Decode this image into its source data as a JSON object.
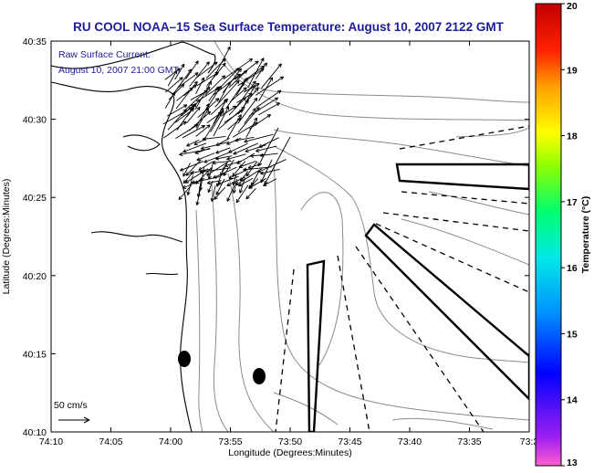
{
  "title": "RU COOL  NOAA–15  Sea Surface Temperature:  August 10, 2007 2122 GMT",
  "annotation": {
    "line1": "Raw Surface Current:",
    "line2": "August 10, 2007 21:00 GMT"
  },
  "scale_label": "50 cm/s",
  "axes": {
    "xlabel": "Longitude (Degrees:Minutes)",
    "ylabel": "Latitude (Degrees:Minutes)",
    "x_ticks": [
      "74:10",
      "74:05",
      "74:00",
      "73:55",
      "73:50",
      "73:45",
      "73:40",
      "73:35",
      "73:3"
    ],
    "y_ticks": [
      "40:35",
      "40:30",
      "40:25",
      "40:20",
      "40:15",
      "40:10"
    ]
  },
  "colorbar": {
    "label": "Temperature (°C)",
    "ticks": [
      "20",
      "19",
      "18",
      "17",
      "16",
      "15",
      "14",
      "13"
    ],
    "min": 13,
    "max": 20
  },
  "colors": {
    "title": "#1c1c9c",
    "annotation": "#1c1c9c",
    "contour": "#888888"
  }
}
